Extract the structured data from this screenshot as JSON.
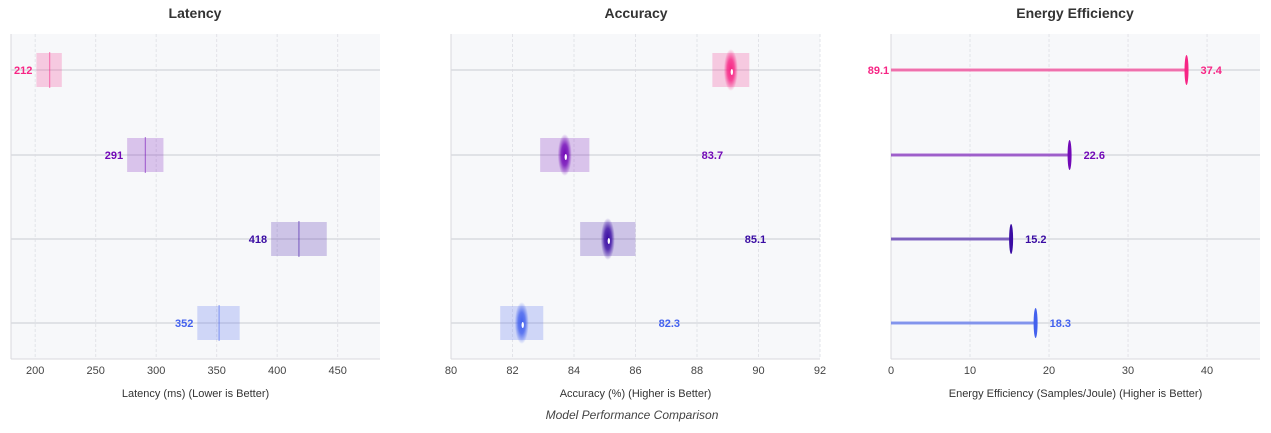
{
  "caption": "Model Performance Comparison",
  "colors": [
    "#f72585",
    "#7209b7",
    "#3a0ca3",
    "#4361ee"
  ],
  "chart_data": [
    {
      "type": "range-bar",
      "title": "Latency",
      "xlabel": "Latency (ms) (Lower is Better)",
      "xlim": [
        180,
        485
      ],
      "xticks": [
        200,
        250,
        300,
        350,
        400,
        450
      ],
      "grid": true,
      "values": [
        212,
        291,
        418,
        352
      ],
      "ranges": [
        [
          201,
          222
        ],
        [
          276,
          306
        ],
        [
          395,
          441
        ],
        [
          334,
          369
        ]
      ]
    },
    {
      "type": "range-bar",
      "title": "Accuracy",
      "xlabel": "Accuracy (%) (Higher is Better)",
      "xlim": [
        80,
        92
      ],
      "xticks": [
        80,
        82,
        84,
        86,
        88,
        90,
        92
      ],
      "grid": true,
      "values": [
        89.1,
        83.7,
        85.1,
        82.3
      ],
      "ranges": [
        [
          88.5,
          89.7
        ],
        [
          82.9,
          84.5
        ],
        [
          84.2,
          86.0
        ],
        [
          81.6,
          83.0
        ]
      ]
    },
    {
      "type": "lollipop",
      "title": "Energy Efficiency",
      "xlabel": "Energy Efficiency (Samples/Joule) (Higher is Better)",
      "xlim": [
        0,
        46.7
      ],
      "xticks": [
        0,
        10,
        20,
        30,
        40
      ],
      "grid": true,
      "values": [
        37.4,
        22.6,
        15.2,
        18.3
      ]
    }
  ]
}
